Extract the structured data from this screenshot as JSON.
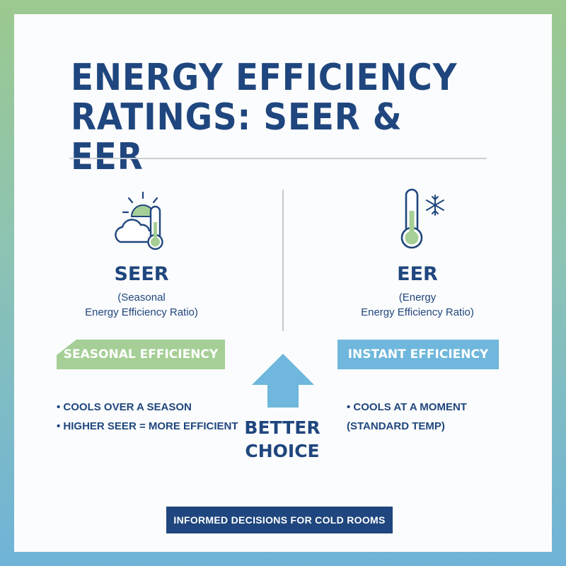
{
  "title": {
    "line1": "ENERGY EFFICIENCY",
    "line2": "RATINGS: SEER & EER"
  },
  "left": {
    "heading": "SEER",
    "sub_line1": "(Seasonal",
    "sub_line2": "Energy Efficiency Ratio)",
    "banner": "SEASONAL EFFICIENCY",
    "bullets": [
      "• COOLS OVER A SEASON",
      "• HIGHER SEER = MORE EFFICIENT"
    ],
    "icon": "sun-cloud-thermometer-icon"
  },
  "right": {
    "heading": "EER",
    "sub_line1": "(Energy",
    "sub_line2": "Energy Efficiency Ratio)",
    "banner": "INSTANT EFFICIENCY",
    "bullets": [
      "• COOLS AT A MOMENT",
      "(STANDARD TEMP)"
    ],
    "icon": "thermometer-snowflake-icon"
  },
  "center": {
    "line1": "BETTER",
    "line2": "CHOICE",
    "icon": "up-arrow-icon"
  },
  "footer": "INFORMED DECISIONS FOR COLD ROOMS",
  "colors": {
    "navy": "#1f467e",
    "green": "#a5cf96",
    "blue": "#6fb7dc"
  }
}
